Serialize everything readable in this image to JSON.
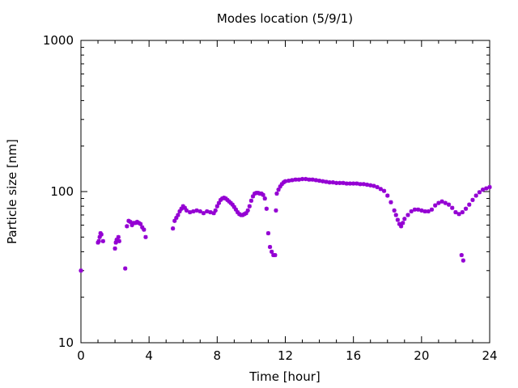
{
  "chart_data": {
    "type": "scatter",
    "title": "Modes location (5/9/1)",
    "xlabel": "Time [hour]",
    "ylabel": "Particle size [nm]",
    "xlim": [
      0,
      24
    ],
    "ylim": [
      10,
      1000
    ],
    "yscale": "log",
    "xticks": [
      0,
      4,
      8,
      12,
      16,
      20,
      24
    ],
    "yticks": [
      10,
      100,
      1000
    ],
    "xtick_labels": [
      "0",
      "4",
      "8",
      "12",
      "16",
      "20",
      "24"
    ],
    "ytick_labels": [
      "10",
      "100",
      "1000"
    ],
    "grid": false,
    "legend": "none",
    "marker_color": "#9400d3",
    "points": [
      [
        0.0,
        30
      ],
      [
        1.0,
        46
      ],
      [
        1.05,
        47
      ],
      [
        1.1,
        50
      ],
      [
        1.15,
        53
      ],
      [
        1.2,
        52
      ],
      [
        1.3,
        47
      ],
      [
        2.0,
        42
      ],
      [
        2.05,
        46
      ],
      [
        2.1,
        48
      ],
      [
        2.2,
        50
      ],
      [
        2.25,
        47
      ],
      [
        2.6,
        31
      ],
      [
        2.7,
        59
      ],
      [
        2.8,
        64
      ],
      [
        2.9,
        63
      ],
      [
        3.0,
        60
      ],
      [
        3.1,
        62
      ],
      [
        3.2,
        62
      ],
      [
        3.3,
        63
      ],
      [
        3.4,
        62
      ],
      [
        3.5,
        61
      ],
      [
        3.6,
        58
      ],
      [
        3.7,
        56
      ],
      [
        3.8,
        50
      ],
      [
        5.4,
        57
      ],
      [
        5.5,
        64
      ],
      [
        5.6,
        67
      ],
      [
        5.7,
        70
      ],
      [
        5.8,
        74
      ],
      [
        5.9,
        77
      ],
      [
        6.0,
        80
      ],
      [
        6.1,
        78
      ],
      [
        6.2,
        75
      ],
      [
        6.4,
        73
      ],
      [
        6.6,
        74
      ],
      [
        6.8,
        75
      ],
      [
        7.0,
        74
      ],
      [
        7.2,
        72
      ],
      [
        7.4,
        74
      ],
      [
        7.6,
        73
      ],
      [
        7.8,
        72
      ],
      [
        7.9,
        75
      ],
      [
        8.0,
        80
      ],
      [
        8.1,
        84
      ],
      [
        8.2,
        88
      ],
      [
        8.3,
        90
      ],
      [
        8.4,
        91
      ],
      [
        8.5,
        90
      ],
      [
        8.6,
        88
      ],
      [
        8.7,
        86
      ],
      [
        8.8,
        84
      ],
      [
        8.9,
        82
      ],
      [
        9.0,
        79
      ],
      [
        9.1,
        76
      ],
      [
        9.2,
        73
      ],
      [
        9.3,
        71
      ],
      [
        9.4,
        70
      ],
      [
        9.5,
        70
      ],
      [
        9.6,
        71
      ],
      [
        9.7,
        72
      ],
      [
        9.8,
        75
      ],
      [
        9.9,
        80
      ],
      [
        10.0,
        87
      ],
      [
        10.1,
        93
      ],
      [
        10.2,
        97
      ],
      [
        10.3,
        98
      ],
      [
        10.4,
        98
      ],
      [
        10.5,
        97
      ],
      [
        10.6,
        97
      ],
      [
        10.7,
        95
      ],
      [
        10.8,
        90
      ],
      [
        10.9,
        77
      ],
      [
        11.0,
        53
      ],
      [
        11.1,
        43
      ],
      [
        11.2,
        40
      ],
      [
        11.3,
        38
      ],
      [
        11.4,
        38
      ],
      [
        11.45,
        75
      ],
      [
        11.5,
        97
      ],
      [
        11.6,
        103
      ],
      [
        11.7,
        108
      ],
      [
        11.8,
        112
      ],
      [
        11.9,
        115
      ],
      [
        12.0,
        117
      ],
      [
        12.2,
        118
      ],
      [
        12.4,
        119
      ],
      [
        12.6,
        120
      ],
      [
        12.8,
        120
      ],
      [
        13.0,
        121
      ],
      [
        13.2,
        121
      ],
      [
        13.4,
        120
      ],
      [
        13.6,
        120
      ],
      [
        13.8,
        119
      ],
      [
        14.0,
        118
      ],
      [
        14.2,
        117
      ],
      [
        14.4,
        116
      ],
      [
        14.6,
        115
      ],
      [
        14.8,
        115
      ],
      [
        15.0,
        114
      ],
      [
        15.2,
        114
      ],
      [
        15.4,
        114
      ],
      [
        15.6,
        113
      ],
      [
        15.8,
        113
      ],
      [
        16.0,
        113
      ],
      [
        16.2,
        113
      ],
      [
        16.4,
        112
      ],
      [
        16.6,
        112
      ],
      [
        16.8,
        111
      ],
      [
        17.0,
        110
      ],
      [
        17.2,
        109
      ],
      [
        17.4,
        107
      ],
      [
        17.6,
        104
      ],
      [
        17.8,
        101
      ],
      [
        18.0,
        94
      ],
      [
        18.2,
        85
      ],
      [
        18.4,
        75
      ],
      [
        18.5,
        70
      ],
      [
        18.6,
        65
      ],
      [
        18.7,
        61
      ],
      [
        18.8,
        59
      ],
      [
        18.9,
        62
      ],
      [
        19.0,
        66
      ],
      [
        19.2,
        70
      ],
      [
        19.4,
        74
      ],
      [
        19.6,
        76
      ],
      [
        19.8,
        76
      ],
      [
        20.0,
        75
      ],
      [
        20.2,
        74
      ],
      [
        20.4,
        74
      ],
      [
        20.6,
        76
      ],
      [
        20.8,
        81
      ],
      [
        21.0,
        84
      ],
      [
        21.2,
        86
      ],
      [
        21.4,
        84
      ],
      [
        21.6,
        82
      ],
      [
        21.8,
        78
      ],
      [
        22.0,
        73
      ],
      [
        22.2,
        71
      ],
      [
        22.4,
        73
      ],
      [
        22.6,
        77
      ],
      [
        22.35,
        38
      ],
      [
        22.45,
        35
      ],
      [
        22.8,
        82
      ],
      [
        23.0,
        88
      ],
      [
        23.2,
        94
      ],
      [
        23.4,
        99
      ],
      [
        23.6,
        103
      ],
      [
        23.8,
        105
      ],
      [
        24.0,
        107
      ]
    ]
  }
}
